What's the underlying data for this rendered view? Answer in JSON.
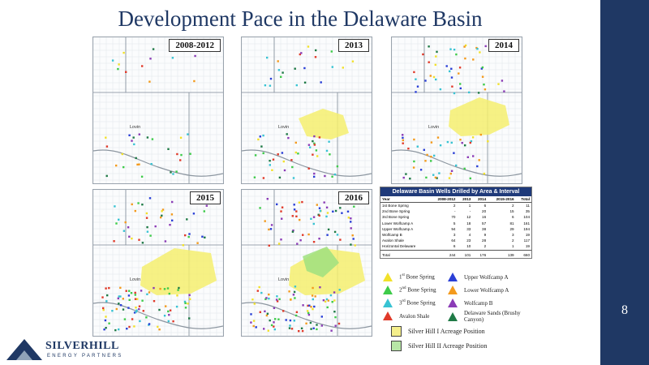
{
  "slide": {
    "title": "Development Pace in the Delaware Basin",
    "page_number": "8"
  },
  "maps": [
    {
      "label": "2008-2012",
      "yellow": 0,
      "green": 0
    },
    {
      "label": "2013",
      "yellow": 1,
      "green": 0
    },
    {
      "label": "2014",
      "yellow": 2,
      "green": 0
    },
    {
      "label": "2015",
      "yellow": 3,
      "green": 0
    },
    {
      "label": "2016",
      "yellow": 3,
      "green": 1
    }
  ],
  "map_text": {
    "town": "Lovin"
  },
  "wells_table": {
    "title": "Delaware Basin Wells Drilled by Area & Interval",
    "columns": [
      "Year",
      "2008-2012",
      "2013",
      "2014",
      "2015-2016",
      "Total"
    ],
    "rows": [
      [
        "1st Bone Spring",
        "2",
        "1",
        "6",
        "2",
        "11"
      ],
      [
        "2nd Bone Spring",
        "-",
        "-",
        "20",
        "15",
        "35"
      ],
      [
        "3rd Bone Spring",
        "70",
        "12",
        "16",
        "6",
        "104"
      ],
      [
        "Lower Wolfcamp A",
        "5",
        "18",
        "57",
        "81",
        "161"
      ],
      [
        "Upper Wolfcamp A",
        "94",
        "33",
        "38",
        "29",
        "194"
      ],
      [
        "Wolfcamp B",
        "3",
        "4",
        "9",
        "3",
        "19"
      ],
      [
        "Avalon Shale",
        "64",
        "23",
        "28",
        "2",
        "117"
      ],
      [
        "Horizontal Delaware",
        "6",
        "10",
        "2",
        "1",
        "19"
      ]
    ],
    "total": [
      "Total",
      "244",
      "101",
      "176",
      "139",
      "660"
    ]
  },
  "legend": {
    "items": [
      {
        "sup_num": "1",
        "sup": "st",
        "rest": " Bone Spring",
        "color": "#f2e12a"
      },
      {
        "sup_num": "2",
        "sup": "nd",
        "rest": " Bone Spring",
        "color": "#3ecb4a"
      },
      {
        "sup_num": "3",
        "sup": "rd",
        "rest": " Bone Spring",
        "color": "#38c3d3"
      },
      {
        "sup_num": "",
        "sup": "",
        "rest": "Avalon Shale",
        "color": "#e03a2a"
      },
      {
        "sup_num": "",
        "sup": "",
        "rest": "Upper Wolfcamp A",
        "color": "#2a3fd6"
      },
      {
        "sup_num": "",
        "sup": "",
        "rest": "Lower Wolfcamp A",
        "color": "#f39a1d"
      },
      {
        "sup_num": "",
        "sup": "",
        "rest": "Wolfcamp B",
        "color": "#8b3cb6"
      },
      {
        "sup_num": "",
        "sup": "",
        "rest": "Delaware Sands (Brushy Canyon)",
        "color": "#1f7a46"
      }
    ],
    "acreage": [
      {
        "label": "Silver Hill I Acreage Position",
        "color": "#f5ef8c"
      },
      {
        "label": "Silver Hill II Acreage Position",
        "color": "#b7e6a6"
      }
    ]
  },
  "logo": {
    "name": "SILVERHILL",
    "tagline": "ENERGY PARTNERS"
  }
}
